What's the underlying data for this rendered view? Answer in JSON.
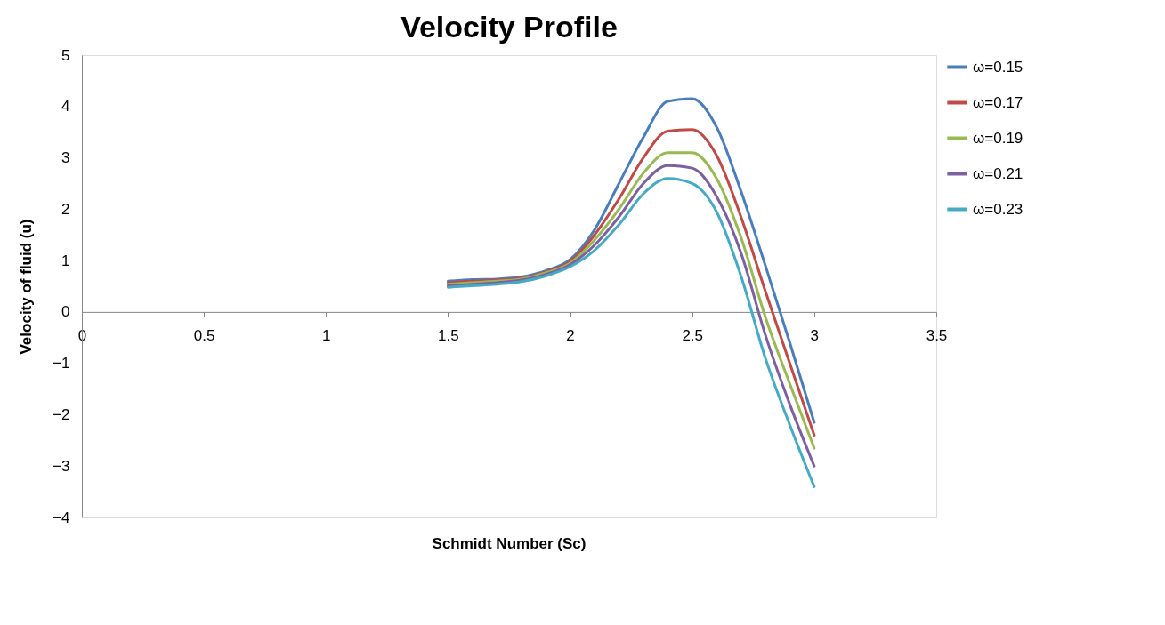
{
  "chart_data": {
    "type": "line",
    "title": "Velocity Profile",
    "xlabel": "Schmidt Number (Sc)",
    "ylabel": "Velocity of fluid  (u)",
    "x": [
      1.5,
      1.6,
      1.7,
      1.8,
      1.9,
      2.0,
      2.1,
      2.2,
      2.3,
      2.4,
      2.5,
      2.6,
      2.7,
      2.8,
      2.9,
      3.0
    ],
    "series": [
      {
        "name": "ω=0.15",
        "color": "#4a7ebb",
        "values": [
          0.6,
          0.63,
          0.64,
          0.68,
          0.8,
          1.02,
          1.6,
          2.5,
          3.4,
          4.1,
          4.15,
          3.6,
          2.35,
          0.9,
          -0.6,
          -2.15
        ]
      },
      {
        "name": "ω=0.17",
        "color": "#be4b48",
        "values": [
          0.57,
          0.6,
          0.62,
          0.66,
          0.78,
          0.98,
          1.5,
          2.2,
          3.0,
          3.52,
          3.55,
          3.05,
          1.85,
          0.4,
          -1.0,
          -2.4
        ]
      },
      {
        "name": "ω=0.19",
        "color": "#98b954",
        "values": [
          0.54,
          0.57,
          0.6,
          0.64,
          0.76,
          0.95,
          1.4,
          2.0,
          2.7,
          3.1,
          3.1,
          2.6,
          1.45,
          -0.1,
          -1.4,
          -2.65
        ]
      },
      {
        "name": "ω=0.21",
        "color": "#7d60a0",
        "values": [
          0.51,
          0.54,
          0.57,
          0.62,
          0.73,
          0.92,
          1.3,
          1.85,
          2.5,
          2.85,
          2.8,
          2.25,
          1.15,
          -0.45,
          -1.8,
          -3.0
        ]
      },
      {
        "name": "ω=0.23",
        "color": "#46aac5",
        "values": [
          0.48,
          0.51,
          0.54,
          0.59,
          0.7,
          0.88,
          1.2,
          1.7,
          2.3,
          2.6,
          2.5,
          1.95,
          0.7,
          -0.9,
          -2.2,
          -3.4
        ]
      }
    ],
    "xlim": [
      0,
      3.5
    ],
    "xticks": [
      0,
      0.5,
      1,
      1.5,
      2,
      2.5,
      3,
      3.5
    ],
    "ylim": [
      -4,
      5
    ],
    "yticks": [
      -4,
      -3,
      -2,
      -1,
      0,
      1,
      2,
      3,
      4,
      5
    ],
    "grid": false,
    "legend": "right",
    "marker": "none",
    "line_style": "solid"
  }
}
